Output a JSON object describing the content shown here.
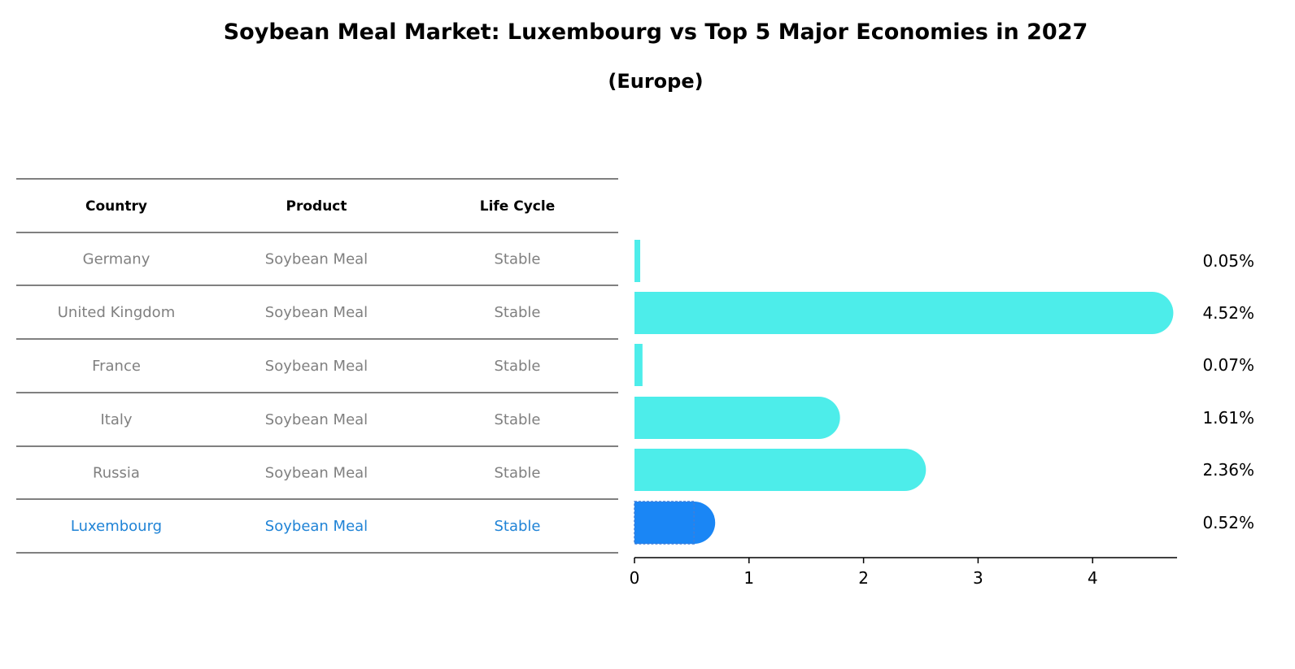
{
  "title": "Soybean Meal Market: Luxembourg vs Top 5 Major Economies in 2027",
  "subtitle": "(Europe)",
  "colors": {
    "bar": "#4dedea",
    "highlight_bar": "#1a86f5",
    "highlight_text": "#1f83d6",
    "muted_text": "#808080"
  },
  "table": {
    "headers": [
      "Country",
      "Product",
      "Life Cycle"
    ],
    "rows": [
      {
        "country": "Germany",
        "product": "Soybean Meal",
        "life_cycle": "Stable"
      },
      {
        "country": "United Kingdom",
        "product": "Soybean Meal",
        "life_cycle": "Stable"
      },
      {
        "country": "France",
        "product": "Soybean Meal",
        "life_cycle": "Stable"
      },
      {
        "country": "Italy",
        "product": "Soybean Meal",
        "life_cycle": "Stable"
      },
      {
        "country": "Russia",
        "product": "Soybean Meal",
        "life_cycle": "Stable"
      },
      {
        "country": "Luxembourg",
        "product": "Soybean Meal",
        "life_cycle": "Stable",
        "highlight": true
      }
    ]
  },
  "chart_data": {
    "type": "bar",
    "orientation": "horizontal",
    "title": "Soybean Meal Market: Luxembourg vs Top 5 Major Economies in 2027",
    "subtitle": "(Europe)",
    "categories": [
      "Germany",
      "United Kingdom",
      "France",
      "Italy",
      "Russia",
      "Luxembourg"
    ],
    "values": [
      0.05,
      4.52,
      0.07,
      1.61,
      2.36,
      0.52
    ],
    "value_labels": [
      "0.05%",
      "4.52%",
      "0.07%",
      "1.61%",
      "2.36%",
      "0.52%"
    ],
    "highlight": "Luxembourg",
    "xlim": [
      0,
      4.75
    ],
    "xticks": [
      0,
      1,
      2,
      3,
      4
    ],
    "xtick_labels": [
      "0",
      "1",
      "2",
      "3",
      "4"
    ],
    "xlabel": "",
    "ylabel": "",
    "grid": false
  }
}
